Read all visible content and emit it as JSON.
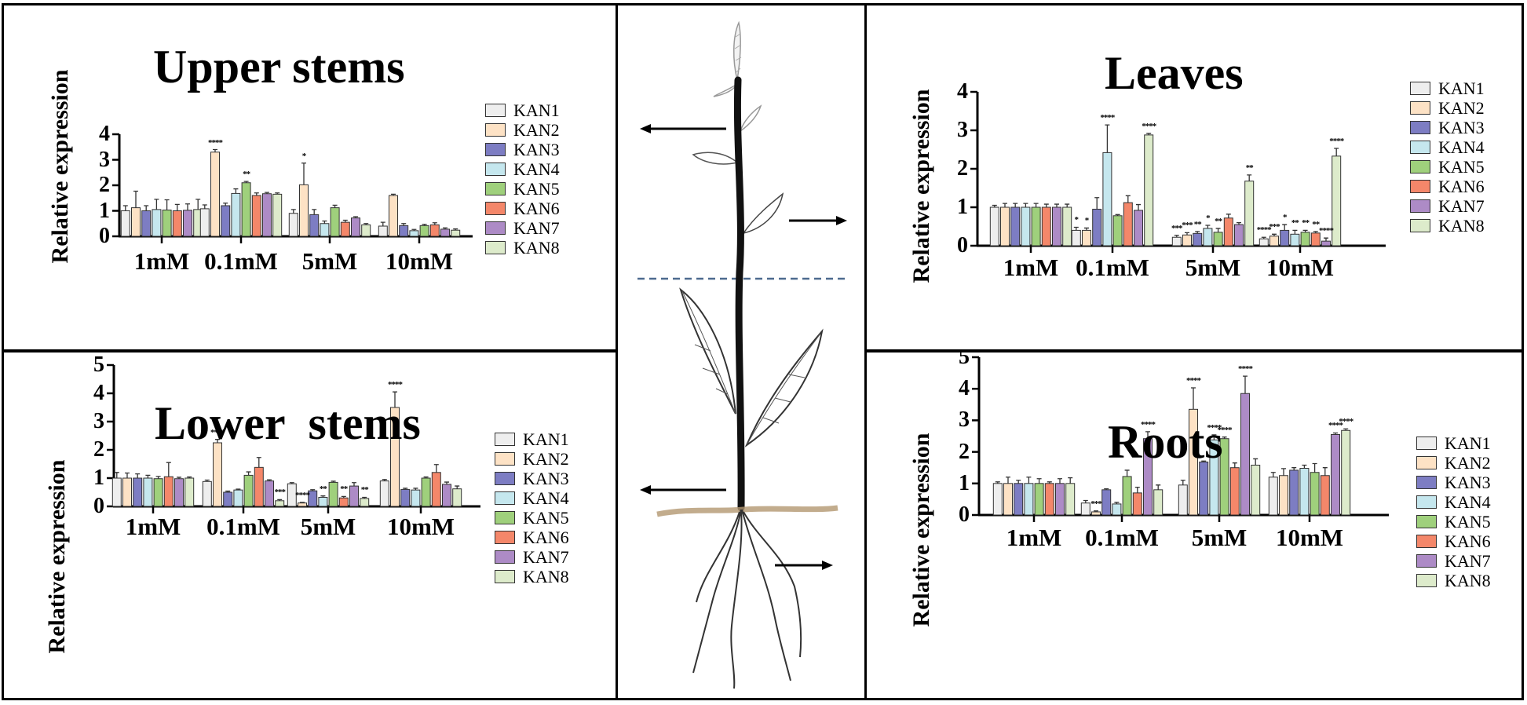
{
  "colors": {
    "KAN1": "#eeeeee",
    "KAN2": "#fde2c5",
    "KAN3": "#7d7dc3",
    "KAN4": "#c5e7ee",
    "KAN5": "#9fd07c",
    "KAN6": "#f4876a",
    "KAN7": "#ad8bc6",
    "KAN8": "#ddebcb"
  },
  "center_icons": [
    "plant-illustration",
    "arrow-left-icon",
    "arrow-right-icon"
  ],
  "chart_data": [
    {
      "id": "upper",
      "type": "bar",
      "title": "Upper stems",
      "ylabel": "Relative expression",
      "ylim": [
        0,
        4
      ],
      "yticks": [
        0,
        1,
        2,
        3,
        4
      ],
      "categories": [
        "1mM",
        "0.1mM",
        "5mM",
        "10mM"
      ],
      "series": [
        {
          "name": "KAN1",
          "values": [
            1.0,
            1.08,
            0.9,
            0.4
          ],
          "errors": [
            0.2,
            0.15,
            0.15,
            0.15
          ],
          "sig": [
            "",
            "",
            "",
            ""
          ]
        },
        {
          "name": "KAN2",
          "values": [
            1.12,
            3.3,
            2.02,
            1.6
          ],
          "errors": [
            0.65,
            0.1,
            0.85,
            0.05
          ],
          "sig": [
            "",
            "****",
            "*",
            ""
          ]
        },
        {
          "name": "KAN3",
          "values": [
            1.0,
            1.2,
            0.85,
            0.42
          ],
          "errors": [
            0.2,
            0.1,
            0.2,
            0.08
          ],
          "sig": [
            "",
            "",
            "",
            ""
          ]
        },
        {
          "name": "KAN4",
          "values": [
            1.05,
            1.68,
            0.5,
            0.22
          ],
          "errors": [
            0.4,
            0.18,
            0.1,
            0.05
          ],
          "sig": [
            "",
            "",
            "",
            ""
          ]
        },
        {
          "name": "KAN5",
          "values": [
            1.03,
            2.1,
            1.12,
            0.42
          ],
          "errors": [
            0.4,
            0.05,
            0.1,
            0.05
          ],
          "sig": [
            "",
            "**",
            "",
            ""
          ]
        },
        {
          "name": "KAN6",
          "values": [
            1.0,
            1.6,
            0.55,
            0.45
          ],
          "errors": [
            0.25,
            0.1,
            0.08,
            0.08
          ],
          "sig": [
            "",
            "",
            "",
            ""
          ]
        },
        {
          "name": "KAN7",
          "values": [
            1.02,
            1.67,
            0.72,
            0.28
          ],
          "errors": [
            0.25,
            0.05,
            0.05,
            0.05
          ],
          "sig": [
            "",
            "",
            "",
            ""
          ]
        },
        {
          "name": "KAN8",
          "values": [
            1.05,
            1.65,
            0.45,
            0.24
          ],
          "errors": [
            0.4,
            0.05,
            0.05,
            0.05
          ],
          "sig": [
            "",
            "",
            "",
            ""
          ]
        }
      ]
    },
    {
      "id": "lower",
      "type": "bar",
      "title": "Lower  stems",
      "ylabel": "Relative expression",
      "ylim": [
        0,
        5
      ],
      "yticks": [
        0,
        1,
        2,
        3,
        4,
        5
      ],
      "categories": [
        "1mM",
        "0.1mM",
        "5mM",
        "10mM"
      ],
      "series": [
        {
          "name": "KAN1",
          "values": [
            1.0,
            0.88,
            0.8,
            0.9
          ],
          "errors": [
            0.2,
            0.05,
            0.04,
            0.05
          ],
          "sig": [
            "",
            "",
            "",
            ""
          ]
        },
        {
          "name": "KAN2",
          "values": [
            1.0,
            2.25,
            0.12,
            3.5
          ],
          "errors": [
            0.18,
            0.12,
            0.02,
            0.55
          ],
          "sig": [
            "",
            "****",
            "****",
            "****"
          ]
        },
        {
          "name": "KAN3",
          "values": [
            1.0,
            0.5,
            0.55,
            0.6
          ],
          "errors": [
            0.15,
            0.04,
            0.04,
            0.04
          ],
          "sig": [
            "",
            "",
            "",
            ""
          ]
        },
        {
          "name": "KAN4",
          "values": [
            1.0,
            0.58,
            0.32,
            0.58
          ],
          "errors": [
            0.1,
            0.03,
            0.05,
            0.06
          ],
          "sig": [
            "",
            "",
            "**",
            ""
          ]
        },
        {
          "name": "KAN5",
          "values": [
            0.98,
            1.1,
            0.85,
            1.0
          ],
          "errors": [
            0.08,
            0.12,
            0.04,
            0.04
          ],
          "sig": [
            "",
            "",
            "",
            ""
          ]
        },
        {
          "name": "KAN6",
          "values": [
            1.05,
            1.38,
            0.3,
            1.2
          ],
          "errors": [
            0.5,
            0.35,
            0.05,
            0.28
          ],
          "sig": [
            "",
            "",
            "**",
            ""
          ]
        },
        {
          "name": "KAN7",
          "values": [
            0.98,
            0.9,
            0.72,
            0.78
          ],
          "errors": [
            0.05,
            0.04,
            0.12,
            0.08
          ],
          "sig": [
            "",
            "",
            "",
            ""
          ]
        },
        {
          "name": "KAN8",
          "values": [
            1.0,
            0.2,
            0.28,
            0.62
          ],
          "errors": [
            0.04,
            0.04,
            0.04,
            0.1
          ],
          "sig": [
            "",
            "***",
            "**",
            ""
          ]
        }
      ]
    },
    {
      "id": "leaves",
      "type": "bar",
      "title": "Leaves",
      "ylabel": "Relative expression",
      "ylim": [
        0,
        4
      ],
      "yticks": [
        0,
        1,
        2,
        3,
        4
      ],
      "categories": [
        "1mM",
        "0.1mM",
        "5mM",
        "10mM"
      ],
      "series": [
        {
          "name": "KAN1",
          "values": [
            1.0,
            0.4,
            0.22,
            0.18
          ],
          "errors": [
            0.05,
            0.08,
            0.05,
            0.04
          ],
          "sig": [
            "",
            "*",
            "***",
            "****"
          ]
        },
        {
          "name": "KAN2",
          "values": [
            1.0,
            0.4,
            0.28,
            0.25
          ],
          "errors": [
            0.1,
            0.06,
            0.06,
            0.05
          ],
          "sig": [
            "",
            "*",
            "***",
            "***"
          ]
        },
        {
          "name": "KAN3",
          "values": [
            1.0,
            0.95,
            0.32,
            0.4
          ],
          "errors": [
            0.1,
            0.3,
            0.05,
            0.15
          ],
          "sig": [
            "",
            "",
            "**",
            "*"
          ]
        },
        {
          "name": "KAN4",
          "values": [
            1.0,
            2.42,
            0.45,
            0.3
          ],
          "errors": [
            0.1,
            0.72,
            0.08,
            0.1
          ],
          "sig": [
            "",
            "****",
            "*",
            "**"
          ]
        },
        {
          "name": "KAN5",
          "values": [
            1.0,
            0.78,
            0.35,
            0.35
          ],
          "errors": [
            0.1,
            0.03,
            0.1,
            0.05
          ],
          "sig": [
            "",
            "",
            "**",
            "**"
          ]
        },
        {
          "name": "KAN6",
          "values": [
            1.0,
            1.12,
            0.72,
            0.33
          ],
          "errors": [
            0.08,
            0.18,
            0.1,
            0.04
          ],
          "sig": [
            "",
            "",
            "",
            "**"
          ]
        },
        {
          "name": "KAN7",
          "values": [
            1.0,
            0.92,
            0.55,
            0.12
          ],
          "errors": [
            0.08,
            0.15,
            0.05,
            0.08
          ],
          "sig": [
            "",
            "",
            "",
            "****"
          ]
        },
        {
          "name": "KAN8",
          "values": [
            1.0,
            2.88,
            1.68,
            2.33
          ],
          "errors": [
            0.08,
            0.04,
            0.16,
            0.2
          ],
          "sig": [
            "",
            "****",
            "**",
            "****"
          ]
        }
      ]
    },
    {
      "id": "roots",
      "type": "bar",
      "title": "Roots",
      "ylabel": "Relative expression",
      "ylim": [
        0,
        5
      ],
      "yticks": [
        0,
        1,
        2,
        3,
        4,
        5
      ],
      "categories": [
        "1mM",
        "0.1mM",
        "5mM",
        "10mM"
      ],
      "series": [
        {
          "name": "KAN1",
          "values": [
            1.0,
            0.38,
            0.95,
            1.2
          ],
          "errors": [
            0.05,
            0.08,
            0.15,
            0.15
          ],
          "sig": [
            "",
            "",
            "",
            ""
          ]
        },
        {
          "name": "KAN2",
          "values": [
            1.0,
            0.1,
            3.35,
            1.25
          ],
          "errors": [
            0.2,
            0.03,
            0.68,
            0.22
          ],
          "sig": [
            "",
            "***",
            "****",
            ""
          ]
        },
        {
          "name": "KAN3",
          "values": [
            1.0,
            0.8,
            1.68,
            1.42
          ],
          "errors": [
            0.1,
            0.03,
            0.03,
            0.08
          ],
          "sig": [
            "",
            "",
            "",
            ""
          ]
        },
        {
          "name": "KAN4",
          "values": [
            1.0,
            0.35,
            2.38,
            1.48
          ],
          "errors": [
            0.2,
            0.05,
            0.16,
            0.1
          ],
          "sig": [
            "",
            "",
            "****",
            ""
          ]
        },
        {
          "name": "KAN5",
          "values": [
            1.0,
            1.22,
            2.42,
            1.35
          ],
          "errors": [
            0.15,
            0.2,
            0.05,
            0.28
          ],
          "sig": [
            "",
            "",
            "****",
            ""
          ]
        },
        {
          "name": "KAN6",
          "values": [
            1.0,
            0.7,
            1.5,
            1.25
          ],
          "errors": [
            0.05,
            0.18,
            0.15,
            0.25
          ],
          "sig": [
            "",
            "",
            "",
            ""
          ]
        },
        {
          "name": "KAN7",
          "values": [
            1.0,
            2.42,
            3.85,
            2.55
          ],
          "errors": [
            0.15,
            0.22,
            0.55,
            0.05
          ],
          "sig": [
            "",
            "****",
            "****",
            "****"
          ]
        },
        {
          "name": "KAN8",
          "values": [
            1.0,
            0.8,
            1.58,
            2.68
          ],
          "errors": [
            0.18,
            0.15,
            0.2,
            0.05
          ],
          "sig": [
            "",
            "",
            "",
            "****"
          ]
        }
      ]
    }
  ]
}
